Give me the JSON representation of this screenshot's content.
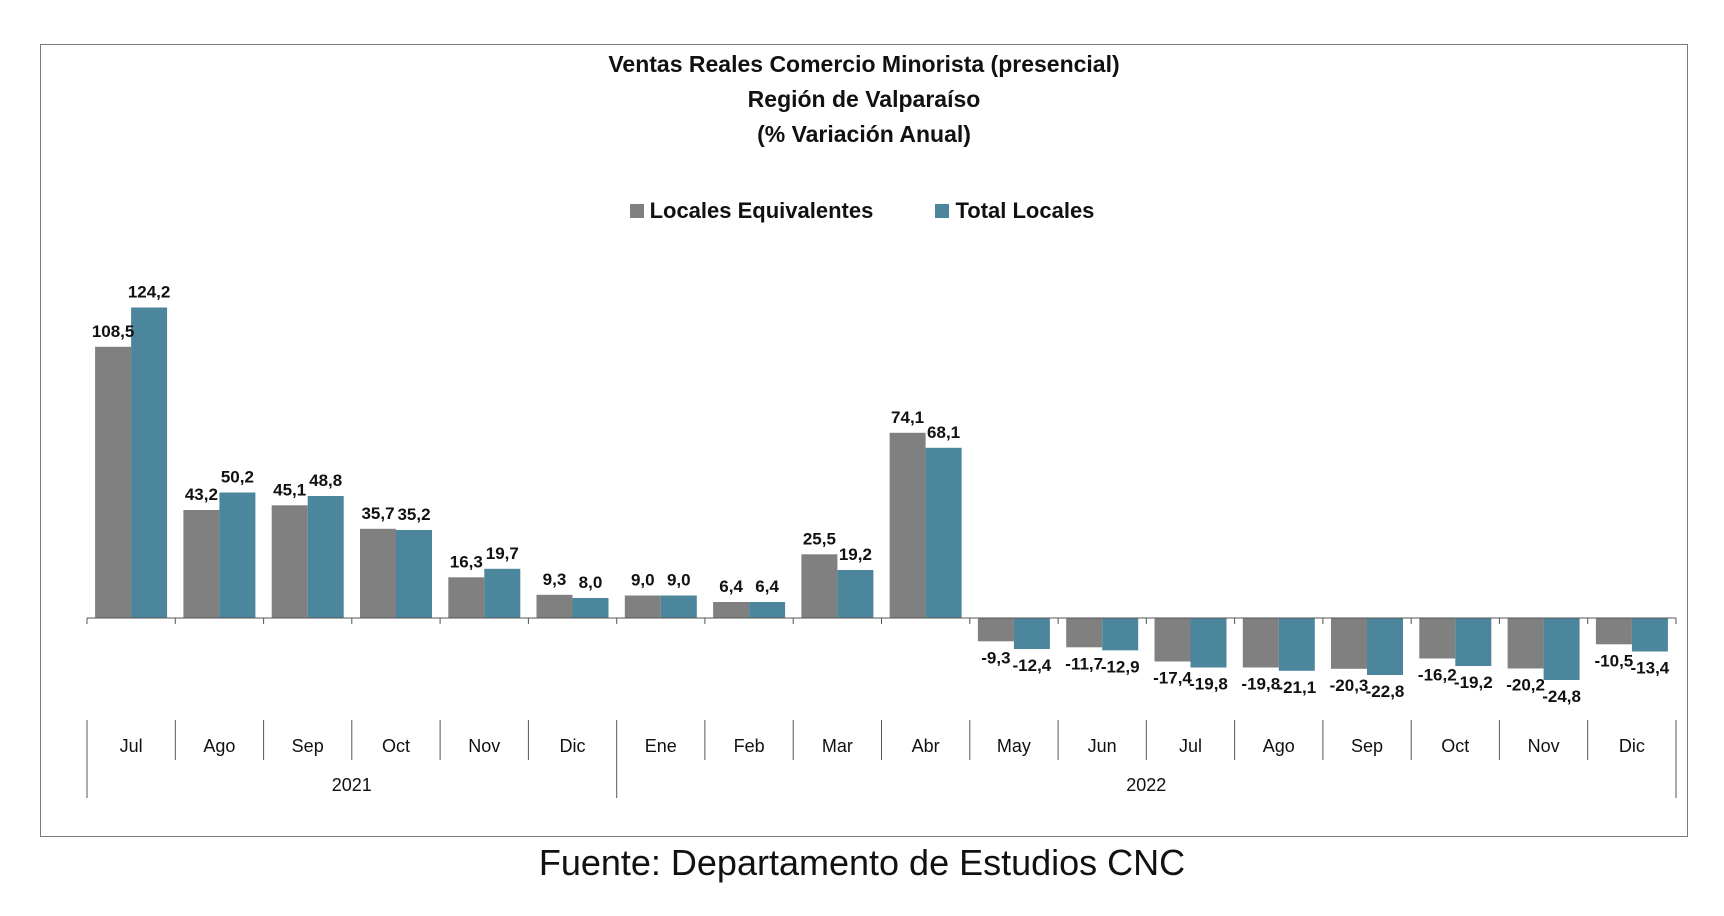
{
  "chart_data": {
    "type": "bar",
    "title": "Ventas Reales Comercio Minorista (presencial)",
    "subtitle": "Región de Valparaíso",
    "subtitle2": "(% Variación Anual)",
    "categories": [
      "Jul",
      "Ago",
      "Sep",
      "Oct",
      "Nov",
      "Dic",
      "Ene",
      "Feb",
      "Mar",
      "Abr",
      "May",
      "Jun",
      "Jul",
      "Ago",
      "Sep",
      "Oct",
      "Nov",
      "Dic"
    ],
    "year_groups": [
      {
        "label": "2021",
        "count": 6
      },
      {
        "label": "2022",
        "count": 12
      }
    ],
    "series": [
      {
        "name": "Locales Equivalentes",
        "color": "#808080",
        "values": [
          108.5,
          43.2,
          45.1,
          35.7,
          16.3,
          9.3,
          9.0,
          6.4,
          25.5,
          74.1,
          -9.3,
          -11.7,
          -17.4,
          -19.8,
          -20.3,
          -16.2,
          -20.2,
          -10.5
        ]
      },
      {
        "name": "Total Locales",
        "color": "#4b869c",
        "values": [
          124.2,
          50.2,
          48.8,
          35.2,
          19.7,
          8.0,
          9.0,
          6.4,
          19.2,
          68.1,
          -12.4,
          -12.9,
          -19.8,
          -21.1,
          -22.8,
          -19.2,
          -24.8,
          -13.4
        ]
      }
    ],
    "value_labels": [
      [
        "108,5",
        "43,2",
        "45,1",
        "35,7",
        "16,3",
        "9,3",
        "9,0",
        "6,4",
        "25,5",
        "74,1",
        "-9,3",
        "-11,7",
        "-17,4",
        "-19,8",
        "-20,3",
        "-16,2",
        "-20,2",
        "-10,5"
      ],
      [
        "124,2",
        "50,2",
        "48,8",
        "35,2",
        "19,7",
        "8,0",
        "9,0",
        "6,4",
        "19,2",
        "68,1",
        "-12,4",
        "-12,9",
        "-19,8",
        "-21,1",
        "-22,8",
        "-19,2",
        "-24,8",
        "-13,4"
      ]
    ],
    "legend_position": "top-center",
    "grid": false
  },
  "source_note": "Fuente: Departamento de Estudios CNC"
}
